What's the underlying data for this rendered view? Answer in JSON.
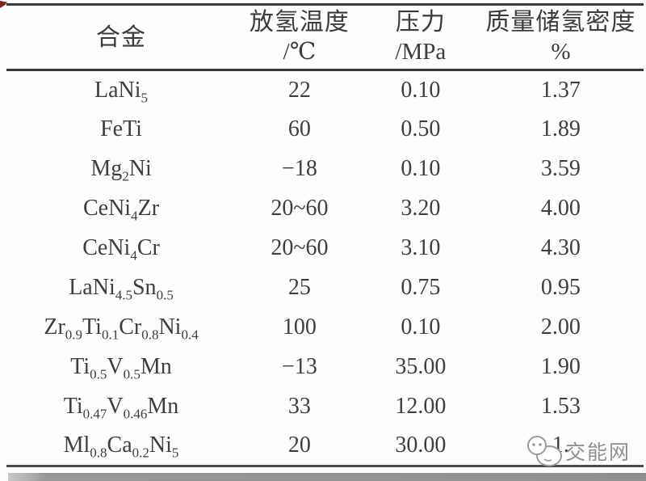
{
  "page": {
    "background": "#fdfdfd",
    "watermark": {
      "text": "交能网",
      "logo": "jiaonengwang-mascot-logo"
    }
  },
  "colors": {
    "rule": "#3a3a3a",
    "text": "#3e3e3e",
    "watermark_gray": "#8f8f8f",
    "bottom_bar": "#909090",
    "corner_artifact_red": "#7a2b1f",
    "background": "#fdfdfd"
  },
  "table": {
    "headers": [
      {
        "line1": "合金",
        "line2": ""
      },
      {
        "line1": "放氢温度",
        "line2": "/℃"
      },
      {
        "line1": "压力",
        "line2": "/MPa"
      },
      {
        "line1": "质量储氢密度",
        "line2": "%"
      }
    ],
    "rows": [
      {
        "alloy": [
          {
            "t": "LaNi"
          },
          {
            "s": "5"
          }
        ],
        "temp": "22",
        "pressure": "0.10",
        "density": "1.37"
      },
      {
        "alloy": [
          {
            "t": "FeTi"
          }
        ],
        "temp": "60",
        "pressure": "0.50",
        "density": "1.89"
      },
      {
        "alloy": [
          {
            "t": "Mg"
          },
          {
            "s": "2"
          },
          {
            "t": "Ni"
          }
        ],
        "temp": "−18",
        "pressure": "0.10",
        "density": "3.59"
      },
      {
        "alloy": [
          {
            "t": "CeNi"
          },
          {
            "s": "4"
          },
          {
            "t": "Zr"
          }
        ],
        "temp": "20~60",
        "pressure": "3.20",
        "density": "4.00"
      },
      {
        "alloy": [
          {
            "t": "CeNi"
          },
          {
            "s": "4"
          },
          {
            "t": "Cr"
          }
        ],
        "temp": "20~60",
        "pressure": "3.10",
        "density": "4.30"
      },
      {
        "alloy": [
          {
            "t": "LaNi"
          },
          {
            "s": "4.5"
          },
          {
            "t": "Sn"
          },
          {
            "s": "0.5"
          }
        ],
        "temp": "25",
        "pressure": "0.75",
        "density": "0.95"
      },
      {
        "alloy": [
          {
            "t": "Zr"
          },
          {
            "s": "0.9"
          },
          {
            "t": "Ti"
          },
          {
            "s": "0.1"
          },
          {
            "t": "Cr"
          },
          {
            "s": "0.8"
          },
          {
            "t": "Ni"
          },
          {
            "s": "0.4"
          }
        ],
        "temp": "100",
        "pressure": "0.10",
        "density": "2.00"
      },
      {
        "alloy": [
          {
            "t": "Ti"
          },
          {
            "s": "0.5"
          },
          {
            "t": "V"
          },
          {
            "s": "0.5"
          },
          {
            "t": "Mn"
          }
        ],
        "temp": "−13",
        "pressure": "35.00",
        "density": "1.90"
      },
      {
        "alloy": [
          {
            "t": "Ti"
          },
          {
            "s": "0.47"
          },
          {
            "t": "V"
          },
          {
            "s": "0.46"
          },
          {
            "t": "Mn"
          }
        ],
        "temp": "33",
        "pressure": "12.00",
        "density": "1.53"
      },
      {
        "alloy": [
          {
            "t": "Ml"
          },
          {
            "s": "0.8"
          },
          {
            "t": "Ca"
          },
          {
            "s": "0.2"
          },
          {
            "t": "Ni"
          },
          {
            "s": "5"
          }
        ],
        "temp": "20",
        "pressure": "30.00",
        "density": "1.",
        "density_obscured_by_watermark": true
      }
    ]
  }
}
